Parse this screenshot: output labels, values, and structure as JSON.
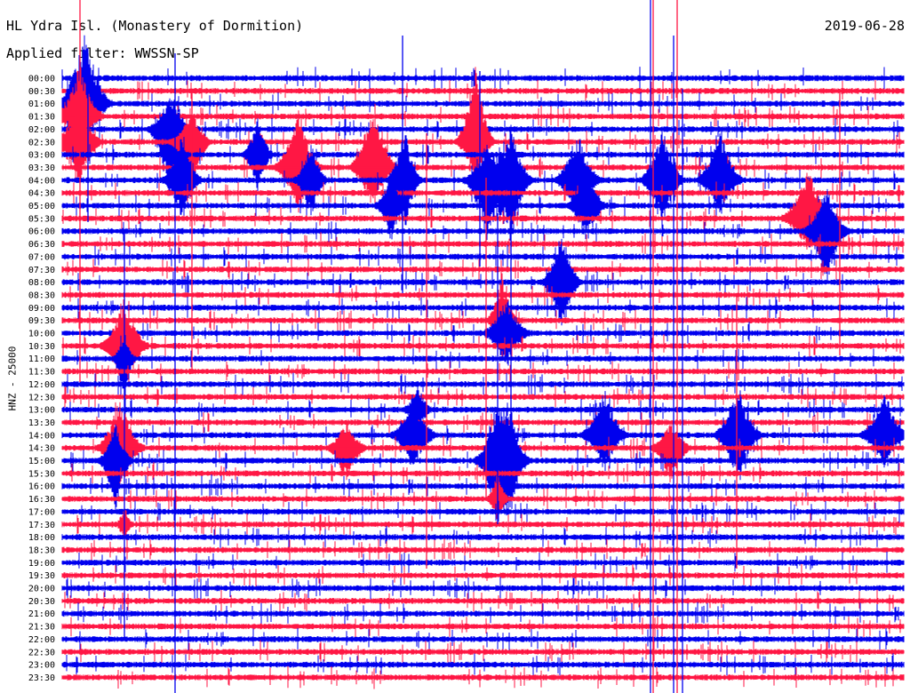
{
  "header": {
    "station": "HL Ydra Isl. (Monastery of Dormition)",
    "filter": "Applied filter: WWSSN-SP",
    "date": "2019-06-28"
  },
  "axis": {
    "ylabel": "HNZ - 25000"
  },
  "chart_data": {
    "type": "helicorder",
    "title": "HL Ydra Isl. (Monastery of Dormition)",
    "subtitle": "Applied filter: WWSSN-SP",
    "date": "2019-06-28",
    "ylabel": "HNZ - 25000",
    "row_interval_minutes": 30,
    "row_labels": [
      "00:00",
      "00:30",
      "01:00",
      "01:30",
      "02:00",
      "02:30",
      "03:00",
      "03:30",
      "04:00",
      "04:30",
      "05:00",
      "05:30",
      "06:00",
      "06:30",
      "07:00",
      "07:30",
      "08:00",
      "08:30",
      "09:00",
      "09:30",
      "10:00",
      "10:30",
      "11:00",
      "11:30",
      "12:00",
      "12:30",
      "13:00",
      "13:30",
      "14:00",
      "14:30",
      "15:00",
      "15:30",
      "16:00",
      "16:30",
      "17:00",
      "17:30",
      "18:00",
      "18:30",
      "19:00",
      "19:30",
      "20:00",
      "20:30",
      "21:00",
      "21:30",
      "22:00",
      "22:30",
      "23:00",
      "23:30"
    ],
    "trace_colors": [
      "#0000ee",
      "#ff1744"
    ]
  }
}
